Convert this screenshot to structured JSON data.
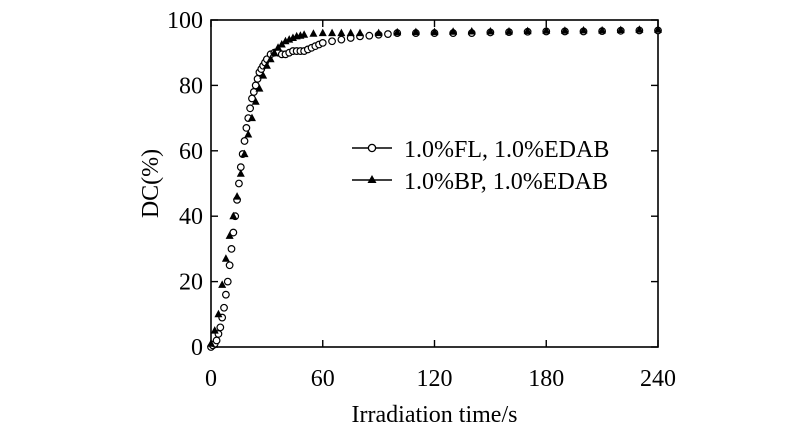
{
  "chart_data": {
    "type": "scatter",
    "xlabel": "Irradiation time/s",
    "ylabel": "DC(%)",
    "xlim": [
      0,
      240
    ],
    "ylim": [
      0,
      100
    ],
    "xticks": [
      0,
      60,
      120,
      180,
      240
    ],
    "yticks": [
      0,
      20,
      40,
      60,
      80,
      100
    ],
    "xtick_labels": [
      "0",
      "60",
      "120",
      "180",
      "240"
    ],
    "ytick_labels": [
      "0",
      "20",
      "40",
      "60",
      "80",
      "100"
    ],
    "grid": false,
    "legend_position": "center-right",
    "series": [
      {
        "name": "1.0%FL, 1.0%EDAB",
        "marker": "open-circle",
        "x": [
          0,
          1,
          2,
          3,
          4,
          5,
          6,
          7,
          8,
          9,
          10,
          11,
          12,
          13,
          14,
          15,
          16,
          17,
          18,
          19,
          20,
          21,
          22,
          23,
          24,
          25,
          26,
          27,
          28,
          29,
          30,
          32,
          34,
          36,
          38,
          40,
          42,
          44,
          46,
          48,
          50,
          52,
          54,
          56,
          58,
          60,
          65,
          70,
          75,
          80,
          85,
          90,
          95,
          100,
          110,
          120,
          130,
          140,
          150,
          160,
          170,
          180,
          190,
          200,
          210,
          220,
          230,
          240
        ],
        "y": [
          0,
          0.5,
          1,
          2,
          4,
          6,
          9,
          12,
          16,
          20,
          25,
          30,
          35,
          40,
          45,
          50,
          55,
          59,
          63,
          67,
          70,
          73,
          76,
          78,
          80,
          82,
          84,
          85,
          86,
          87,
          88,
          89.5,
          90,
          90,
          89.5,
          89.5,
          90,
          90.5,
          90.5,
          90.5,
          90.5,
          91,
          91.5,
          92,
          92.5,
          93,
          93.5,
          94,
          94.5,
          95,
          95.2,
          95.5,
          95.7,
          96,
          96,
          96,
          96,
          96,
          96.2,
          96.3,
          96.4,
          96.5,
          96.5,
          96.5,
          96.6,
          96.7,
          96.8,
          96.8
        ]
      },
      {
        "name": "1.0%BP, 1.0%EDAB",
        "marker": "filled-triangle",
        "x": [
          0,
          2,
          4,
          6,
          8,
          10,
          12,
          14,
          16,
          18,
          20,
          22,
          24,
          26,
          28,
          30,
          32,
          34,
          36,
          38,
          40,
          42,
          44,
          46,
          48,
          50,
          55,
          60,
          65,
          70,
          75,
          80,
          90,
          100,
          110,
          120,
          130,
          140,
          150,
          160,
          170,
          180,
          190,
          200,
          210,
          220,
          230,
          240
        ],
        "y": [
          1,
          5,
          10,
          19,
          27,
          34,
          40,
          46,
          53,
          59,
          65,
          70,
          75,
          79,
          83,
          86,
          88,
          90,
          91.5,
          92.5,
          93.5,
          94,
          94.5,
          95,
          95.2,
          95.5,
          95.8,
          96,
          96,
          96,
          96,
          96,
          96,
          96.2,
          96.3,
          96.3,
          96.4,
          96.5,
          96.5,
          96.5,
          96.6,
          96.7,
          96.7,
          96.8,
          96.8,
          96.9,
          97,
          97
        ]
      }
    ]
  }
}
